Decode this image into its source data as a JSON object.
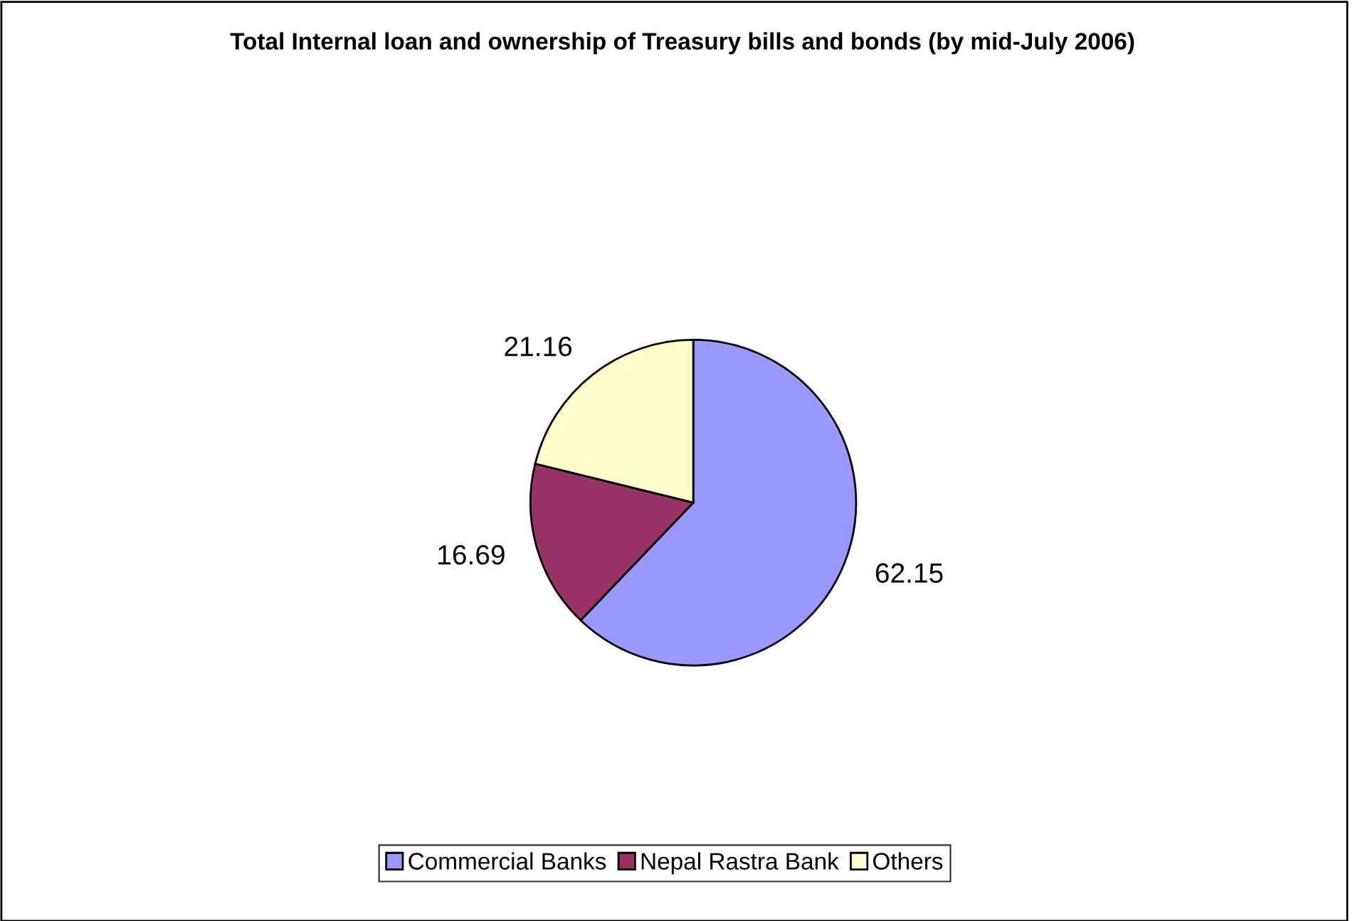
{
  "chart_data": {
    "type": "pie",
    "title": "Total Internal loan and ownership of Treasury bills and bonds (by mid-July 2006)",
    "categories": [
      "Commercial Banks",
      "Nepal Rastra Bank",
      "Others"
    ],
    "values": [
      62.15,
      16.69,
      21.16
    ],
    "colors": [
      "#9999ff",
      "#993366",
      "#ffffcc"
    ],
    "data_labels": true,
    "legend": "bottom"
  }
}
